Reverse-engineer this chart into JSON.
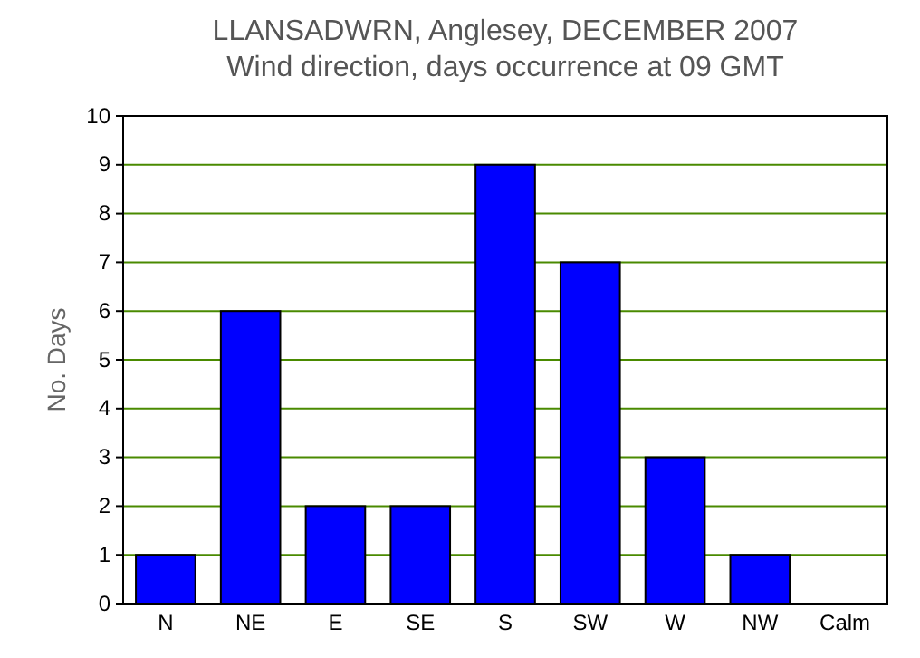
{
  "chart_data": {
    "type": "bar",
    "title": "LLANSADWRN, Anglesey, DECEMBER 2007",
    "subtitle": "Wind direction, days occurrence at 09 GMT",
    "ylabel": "No. Days",
    "categories": [
      "N",
      "NE",
      "E",
      "SE",
      "S",
      "SW",
      "W",
      "NW",
      "Calm"
    ],
    "values": [
      1,
      6,
      2,
      2,
      9,
      7,
      3,
      1,
      0
    ],
    "color": "#0000ff",
    "ylim": [
      0,
      10
    ],
    "yticks": [
      0,
      1,
      2,
      3,
      4,
      5,
      6,
      7,
      8,
      9,
      10
    ],
    "grid": "y"
  }
}
